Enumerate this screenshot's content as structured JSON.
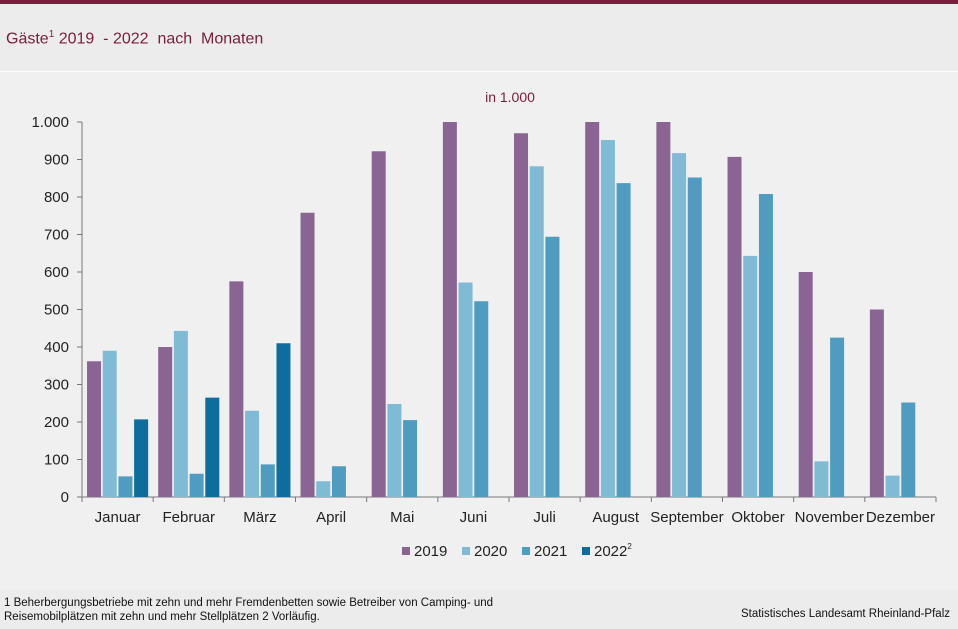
{
  "header": {
    "title_main": "Gäste",
    "title_sup": "1",
    "title_rest": " 2019  - 2022  nach  Monaten",
    "accent_color": "#7b1d3a"
  },
  "chart_data": {
    "type": "bar",
    "subtitle": "in 1.000",
    "categories": [
      "Januar",
      "Februar",
      "März",
      "April",
      "Mai",
      "Juni",
      "Juli",
      "August",
      "September",
      "Oktober",
      "November",
      "Dezember"
    ],
    "series": [
      {
        "name": "2019",
        "sup": "",
        "color": "#8a6493",
        "values": [
          362,
          400,
          575,
          758,
          922,
          1000,
          970,
          1000,
          1000,
          907,
          600,
          500
        ]
      },
      {
        "name": "2020",
        "sup": "",
        "color": "#80bbd6",
        "values": [
          390,
          443,
          230,
          42,
          248,
          572,
          882,
          952,
          917,
          643,
          95,
          57
        ]
      },
      {
        "name": "2021",
        "sup": "",
        "color": "#4f9cc0",
        "values": [
          55,
          62,
          87,
          82,
          205,
          522,
          694,
          837,
          852,
          808,
          425,
          252
        ]
      },
      {
        "name": "2022",
        "sup": "2",
        "color": "#0d6e9d",
        "values": [
          207,
          265,
          410,
          null,
          null,
          null,
          null,
          null,
          null,
          null,
          null,
          null
        ]
      }
    ],
    "ylim": [
      0,
      1000
    ],
    "yticks": [
      0,
      100,
      200,
      300,
      400,
      500,
      600,
      700,
      800,
      900,
      1000
    ],
    "ytick_labels": [
      "0",
      "100",
      "200",
      "300",
      "400",
      "500",
      "600",
      "700",
      "800",
      "900",
      "1.000"
    ],
    "grid": false,
    "legend": "bottom-center"
  },
  "footer": {
    "footnote_line1": "1 Beherbergungsbetriebe  mit zehn und mehr Fremdenbetten  sowie Betreiber von Camping-  und",
    "footnote_line2": "Reisemobilplätzen  mit zehn und  mehr Stellplätzen 2 Vorläufig.",
    "source": "Statistisches Landesamt Rheinland-Pfalz"
  }
}
